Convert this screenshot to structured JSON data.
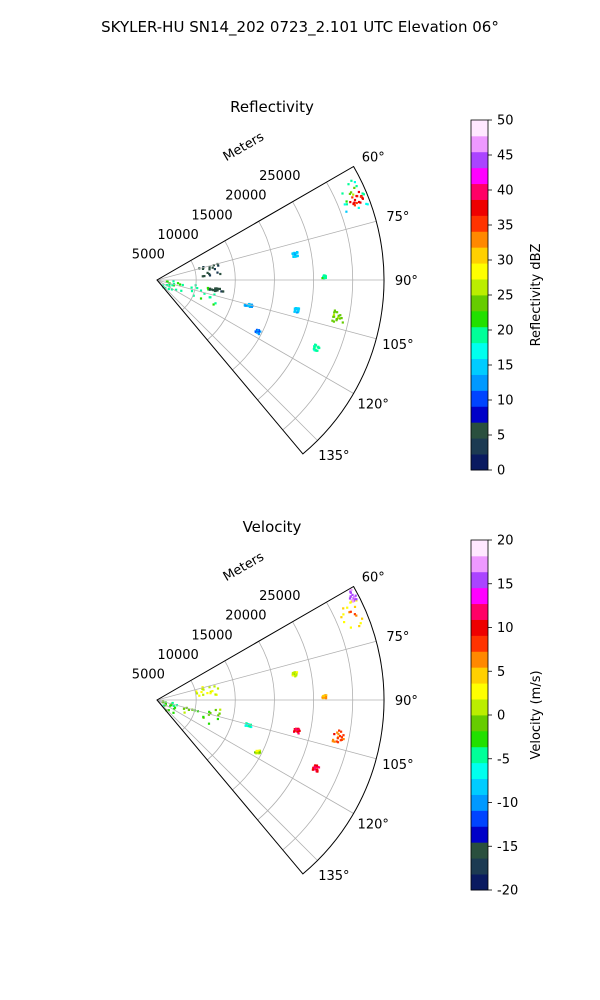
{
  "figure_title": "SKYLER-HU  SN14_202  0723_2.101 UTC Elevation 06°",
  "chart_data": [
    {
      "type": "polar-sector",
      "title": "Reflectivity",
      "range_label": "Meters",
      "range_ticks": [
        5000,
        10000,
        15000,
        20000,
        25000
      ],
      "rlim": [
        0,
        29000
      ],
      "theta_ticks_deg": [
        60,
        75,
        90,
        105,
        120,
        135
      ],
      "theta_tick_labels": [
        "60°",
        "75°",
        "90°",
        "105°",
        "120°",
        "135°"
      ],
      "theta_range_deg": [
        60,
        140
      ],
      "grid": true,
      "colorbar": {
        "label": "Reflectivity dBZ",
        "min": 0,
        "max": 50,
        "ticks": [
          0,
          5,
          10,
          15,
          20,
          25,
          30,
          35,
          40,
          45,
          50
        ],
        "stops": [
          "#0a1a60",
          "#1c3a52",
          "#2a4f3e",
          "#0000c8",
          "#0044ff",
          "#0099ff",
          "#00ccff",
          "#00ffee",
          "#00ff99",
          "#22e000",
          "#66cc00",
          "#bbee00",
          "#ffff00",
          "#ffd000",
          "#ff8800",
          "#ff3300",
          "#ee0000",
          "#ff0066",
          "#ff00ff",
          "#aa44ff",
          "#ee99ff",
          "#ffe8ff"
        ]
      },
      "echoes": [
        {
          "az_deg": [
            62,
            70
          ],
          "range_m": [
            25500,
            28800
          ],
          "value": 27,
          "edge_value": 17
        },
        {
          "az_deg": [
            66,
            69
          ],
          "range_m": [
            26500,
            28200
          ],
          "value": 37
        },
        {
          "az_deg": [
            90,
            140
          ],
          "range_m": [
            400,
            2600
          ],
          "value": 20
        },
        {
          "az_deg": [
            96,
            114
          ],
          "range_m": [
            2800,
            8200
          ],
          "value": 20
        },
        {
          "az_deg": [
            72,
            84
          ],
          "range_m": [
            5000,
            8000
          ],
          "value": 5
        },
        {
          "az_deg": [
            97,
            100
          ],
          "range_m": [
            6500,
            8500
          ],
          "value": 5
        },
        {
          "az_deg": [
            78,
            80
          ],
          "range_m": [
            17500,
            18200
          ],
          "value": 15
        },
        {
          "az_deg": [
            88,
            89
          ],
          "range_m": [
            21000,
            21500
          ],
          "value": 19
        },
        {
          "az_deg": [
            99,
            103
          ],
          "range_m": [
            22800,
            24200
          ],
          "value": 24
        },
        {
          "az_deg": [
            104,
            106
          ],
          "range_m": [
            11500,
            12500
          ],
          "value": 13
        },
        {
          "az_deg": [
            101,
            103
          ],
          "range_m": [
            17800,
            18500
          ],
          "value": 15
        },
        {
          "az_deg": [
            116,
            118
          ],
          "range_m": [
            14000,
            14600
          ],
          "value": 12
        },
        {
          "az_deg": [
            112,
            114
          ],
          "range_m": [
            21500,
            22300
          ],
          "value": 19
        }
      ]
    },
    {
      "type": "polar-sector",
      "title": "Velocity",
      "range_label": "Meters",
      "range_ticks": [
        5000,
        10000,
        15000,
        20000,
        25000
      ],
      "rlim": [
        0,
        29000
      ],
      "theta_ticks_deg": [
        60,
        75,
        90,
        105,
        120,
        135
      ],
      "theta_tick_labels": [
        "60°",
        "75°",
        "90°",
        "105°",
        "120°",
        "135°"
      ],
      "theta_range_deg": [
        60,
        140
      ],
      "grid": true,
      "colorbar": {
        "label": "Velocity (m/s)",
        "min": -20,
        "max": 20,
        "ticks": [
          -20,
          -15,
          -10,
          -5,
          0,
          5,
          10,
          15,
          20
        ],
        "stops": [
          "#0a1a60",
          "#1c3a52",
          "#2a4f3e",
          "#0000c8",
          "#0044ff",
          "#0099ff",
          "#00ccff",
          "#00ffee",
          "#00ff99",
          "#22e000",
          "#66cc00",
          "#bbee00",
          "#ffff00",
          "#ffd000",
          "#ff8800",
          "#ff3300",
          "#ee0000",
          "#ff0066",
          "#ff00ff",
          "#aa44ff",
          "#ee99ff",
          "#ffe8ff"
        ]
      },
      "echoes": [
        {
          "az_deg": [
            62,
            70
          ],
          "range_m": [
            25500,
            28800
          ],
          "value": 8,
          "edge_value": 2
        },
        {
          "az_deg": [
            60,
            63
          ],
          "range_m": [
            27800,
            28800
          ],
          "value": 16
        },
        {
          "az_deg": [
            90,
            140
          ],
          "range_m": [
            400,
            2600
          ],
          "value": -3
        },
        {
          "az_deg": [
            96,
            114
          ],
          "range_m": [
            2800,
            8200
          ],
          "value": -1
        },
        {
          "az_deg": [
            72,
            84
          ],
          "range_m": [
            5000,
            8000
          ],
          "value": 2
        },
        {
          "az_deg": [
            78,
            80
          ],
          "range_m": [
            17500,
            18200
          ],
          "value": 1
        },
        {
          "az_deg": [
            88,
            89
          ],
          "range_m": [
            21000,
            21500
          ],
          "value": 6
        },
        {
          "az_deg": [
            99,
            103
          ],
          "range_m": [
            22800,
            24200
          ],
          "value": 8
        },
        {
          "az_deg": [
            104,
            106
          ],
          "range_m": [
            11500,
            12500
          ],
          "value": -5
        },
        {
          "az_deg": [
            101,
            103
          ],
          "range_m": [
            17800,
            18500
          ],
          "value": 10
        },
        {
          "az_deg": [
            116,
            118
          ],
          "range_m": [
            14000,
            14600
          ],
          "value": 1
        },
        {
          "az_deg": [
            112,
            114
          ],
          "range_m": [
            21500,
            22300
          ],
          "value": 11
        }
      ]
    }
  ]
}
